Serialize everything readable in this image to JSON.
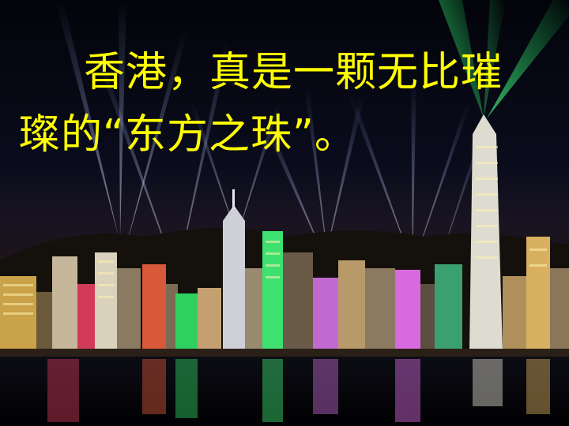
{
  "slide": {
    "caption_line1": "香港，真是一颗无比璀",
    "caption_line2": "璨的“东方之珠”。"
  },
  "colors": {
    "caption_text": "#ffff00",
    "sky": "#05060f",
    "water": "#020308",
    "laser_green": "#1aff66"
  }
}
